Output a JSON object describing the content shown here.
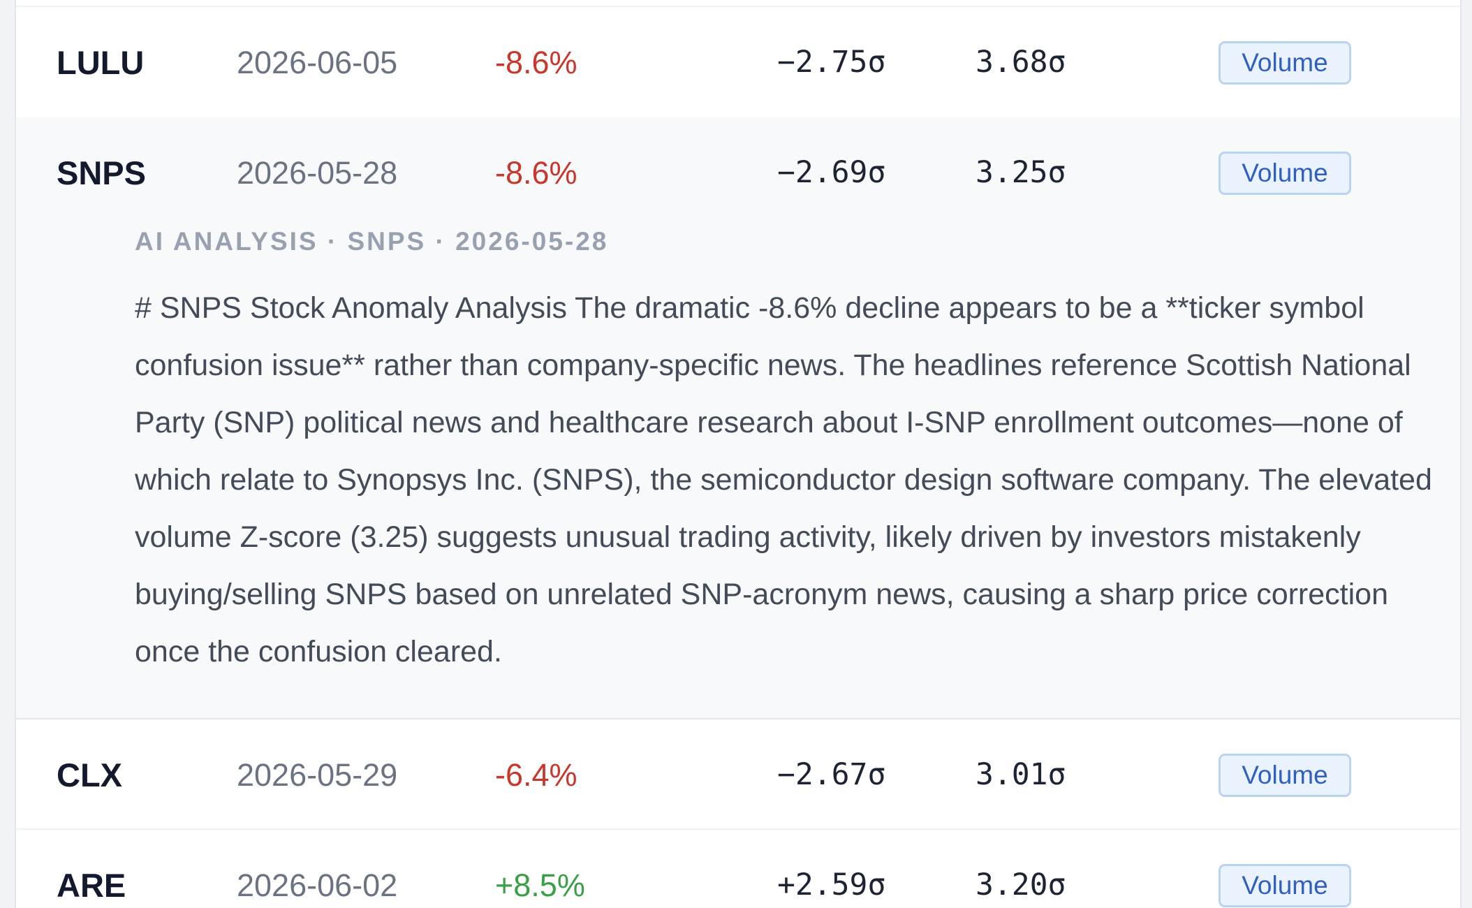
{
  "rows": [
    {
      "ticker": "LULU",
      "date": "2026-06-05",
      "change": "-8.6%",
      "price_z": "−2.75σ",
      "volume_z": "3.68σ",
      "badge": "Volume",
      "direction": "down"
    },
    {
      "ticker": "SNPS",
      "date": "2026-05-28",
      "change": "-8.6%",
      "price_z": "−2.69σ",
      "volume_z": "3.25σ",
      "badge": "Volume",
      "direction": "down"
    },
    {
      "ticker": "CLX",
      "date": "2026-05-29",
      "change": "-6.4%",
      "price_z": "−2.67σ",
      "volume_z": "3.01σ",
      "badge": "Volume",
      "direction": "down"
    },
    {
      "ticker": "ARE",
      "date": "2026-06-02",
      "change": "+8.5%",
      "price_z": "+2.59σ",
      "volume_z": "3.20σ",
      "badge": "Volume",
      "direction": "up"
    }
  ],
  "analysis": {
    "label": "AI ANALYSIS · SNPS · 2026-05-28",
    "text": "# SNPS Stock Anomaly Analysis The dramatic -8.6% decline appears to be a **ticker symbol confusion issue** rather than company-specific news. The headlines reference Scottish National Party (SNP) political news and healthcare research about I-SNP enrollment outcomes—none of which relate to Synopsys Inc. (SNPS), the semiconductor design software company. The elevated volume Z-score (3.25) suggests unusual trading activity, likely driven by investors mistakenly buying/selling SNPS based on unrelated SNP-acronym news, causing a sharp price correction once the confusion cleared."
  },
  "colors": {
    "negative": "#c9362c",
    "positive": "#3aa047",
    "badge_text": "#2f5fc0"
  }
}
